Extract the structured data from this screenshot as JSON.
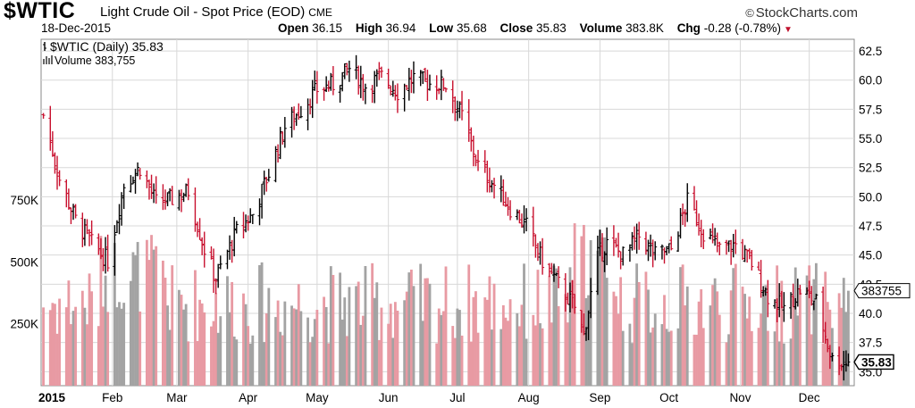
{
  "header": {
    "symbol": "$WTIC",
    "description": "Light Crude Oil - Spot Price (EOD)",
    "exchange": "CME",
    "date": "18-Dec-2015",
    "brand": "StockCharts.com",
    "brand_icon": "copyright-icon",
    "open_label": "Open",
    "open": "36.15",
    "high_label": "High",
    "high": "36.94",
    "low_label": "Low",
    "low": "35.68",
    "close_label": "Close",
    "close": "35.83",
    "volume_label": "Volume",
    "volume": "383.8K",
    "chg_label": "Chg",
    "chg": "-0.28 (-0.78%)"
  },
  "legend": {
    "price": "$WTIC (Daily) 35.83",
    "volume": "Volume 383,755"
  },
  "colors": {
    "up": "#000000",
    "down": "#c8102e",
    "vol_up": "#a3a3a3",
    "vol_down": "#e89aa3",
    "grid": "#d8d8d8"
  },
  "chart_data": {
    "type": "ohlc",
    "title": "$WTIC Light Crude Oil - Spot Price (EOD)",
    "x_labels": [
      "2015",
      "Feb",
      "Mar",
      "Apr",
      "May",
      "Jun",
      "Jul",
      "Aug",
      "Sep",
      "Oct",
      "Nov",
      "Dec"
    ],
    "y_ticks": [
      35.0,
      37.5,
      40.0,
      42.5,
      45.0,
      47.5,
      50.0,
      52.5,
      55.0,
      57.5,
      60.0,
      62.5
    ],
    "y_tick_labels": [
      "35.0",
      "37.5",
      "40.0",
      "42.5",
      "45.0",
      "47.5",
      "50.0",
      "52.5",
      "55.0",
      "57.5",
      "60.0",
      "62.5"
    ],
    "ylim": [
      33.8,
      63.5
    ],
    "volume_ticks": [
      250000,
      500000,
      750000
    ],
    "volume_tick_labels": [
      "250K",
      "500K",
      "750K"
    ],
    "volume_max": 1400000,
    "last_close_label": "35.83",
    "last_volume_label": "383755",
    "grid": true,
    "price_series": {
      "name": "$WTIC (Daily)",
      "dates": [
        "2015-01-02",
        "2015-01-09",
        "2015-01-16",
        "2015-01-23",
        "2015-01-30",
        "2015-02-06",
        "2015-02-13",
        "2015-02-20",
        "2015-02-27",
        "2015-03-06",
        "2015-03-13",
        "2015-03-18",
        "2015-03-27",
        "2015-04-03",
        "2015-04-10",
        "2015-04-17",
        "2015-04-24",
        "2015-05-01",
        "2015-05-08",
        "2015-05-15",
        "2015-05-22",
        "2015-05-29",
        "2015-06-05",
        "2015-06-12",
        "2015-06-19",
        "2015-06-26",
        "2015-07-03",
        "2015-07-10",
        "2015-07-17",
        "2015-07-24",
        "2015-07-31",
        "2015-08-07",
        "2015-08-14",
        "2015-08-21",
        "2015-08-25",
        "2015-08-31",
        "2015-09-04",
        "2015-09-11",
        "2015-09-18",
        "2015-09-25",
        "2015-10-02",
        "2015-10-09",
        "2015-10-16",
        "2015-10-23",
        "2015-10-30",
        "2015-11-06",
        "2015-11-13",
        "2015-11-20",
        "2015-11-27",
        "2015-12-04",
        "2015-12-11",
        "2015-12-18"
      ],
      "close": [
        57.0,
        51.5,
        48.0,
        46.0,
        44.5,
        51.0,
        52.5,
        49.5,
        49.8,
        50.5,
        45.5,
        43.0,
        47.0,
        48.5,
        52.0,
        56.0,
        57.5,
        59.2,
        59.6,
        61.0,
        59.5,
        60.3,
        59.0,
        60.2,
        59.7,
        59.6,
        56.9,
        52.7,
        51.0,
        49.0,
        47.5,
        44.5,
        42.5,
        40.5,
        38.2,
        45.0,
        46.0,
        45.0,
        46.6,
        45.0,
        45.5,
        49.6,
        47.0,
        45.5,
        45.9,
        44.3,
        41.5,
        40.4,
        42.0,
        41.0,
        36.0,
        35.83
      ]
    },
    "volume_series": {
      "name": "Volume",
      "approx_range": [
        150000,
        650000
      ],
      "last": 383755
    }
  }
}
